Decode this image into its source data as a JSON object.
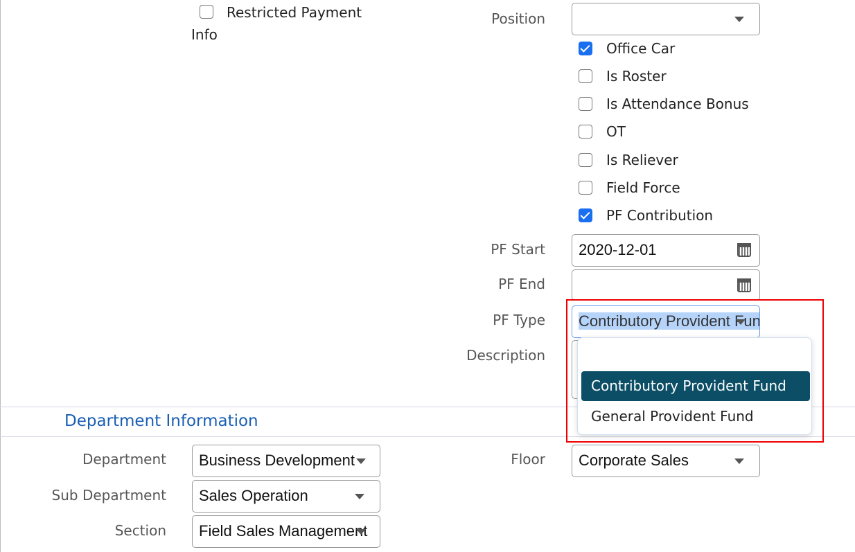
{
  "left_column": {
    "restricted_payment_info": {
      "label_line1": "Restricted Payment",
      "label_line2": "Info",
      "checked": false
    }
  },
  "right_column": {
    "position": {
      "label": "Position",
      "value": ""
    },
    "checkboxes": [
      {
        "label": "Office Car",
        "checked": true
      },
      {
        "label": "Is Roster",
        "checked": false
      },
      {
        "label": "Is Attendance Bonus",
        "checked": false
      },
      {
        "label": "OT",
        "checked": false
      },
      {
        "label": "Is Reliever",
        "checked": false
      },
      {
        "label": "Field Force",
        "checked": false
      },
      {
        "label": "PF Contribution",
        "checked": true
      }
    ],
    "pf_start": {
      "label": "PF Start",
      "value": "2020-12-01"
    },
    "pf_end": {
      "label": "PF End",
      "value": ""
    },
    "pf_type": {
      "label": "PF Type",
      "value": "Contributory Provident Fund",
      "options": [
        "",
        "Contributory Provident Fund",
        "General Provident Fund"
      ]
    },
    "description": {
      "label": "Description",
      "value": ""
    }
  },
  "department_section": {
    "title": "Department Information",
    "department": {
      "label": "Department",
      "value": "Business Development"
    },
    "sub_department": {
      "label": "Sub Department",
      "value": "Sales Operation"
    },
    "section": {
      "label": "Section",
      "value": "Field Sales Management"
    },
    "floor": {
      "label": "Floor",
      "value": "Corporate Sales"
    }
  },
  "colors": {
    "accent": "#1a6ff0",
    "section_title": "#1a5fb4",
    "option_highlight": "#0b4e66",
    "annotation_box": "#ee0000"
  }
}
